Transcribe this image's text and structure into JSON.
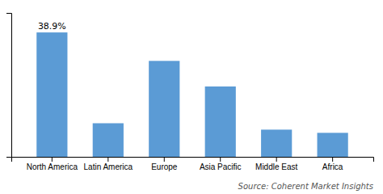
{
  "chart_data": {
    "type": "bar",
    "categories": [
      "North America",
      "Latin America",
      "Europe",
      "Asia Pacific",
      "Middle East",
      "Africa"
    ],
    "values": [
      38.9,
      10.5,
      30.0,
      22.0,
      8.5,
      7.5
    ],
    "color": "#5b9bd5",
    "ylim": [
      0,
      45
    ],
    "yticks": [],
    "grid": false,
    "tick_labels": "x",
    "annotations": [
      {
        "text": "38.9%",
        "category": "North America"
      }
    ],
    "source": "Source: Coherent Market Insights"
  }
}
